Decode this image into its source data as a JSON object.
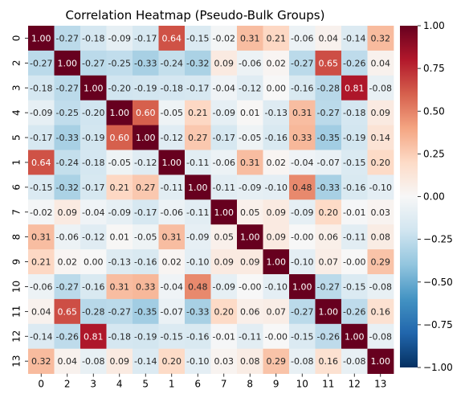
{
  "chart_data": {
    "type": "heatmap",
    "title": "Correlation Heatmap (Pseudo-Bulk Groups)",
    "xlabel": "",
    "ylabel": "",
    "x_labels": [
      "0",
      "2",
      "3",
      "4",
      "5",
      "1",
      "6",
      "7",
      "8",
      "9",
      "10",
      "11",
      "12",
      "13"
    ],
    "y_labels": [
      "0",
      "2",
      "3",
      "4",
      "5",
      "1",
      "6",
      "7",
      "8",
      "9",
      "10",
      "11",
      "12",
      "13"
    ],
    "values": [
      [
        1.0,
        -0.27,
        -0.18,
        -0.09,
        -0.17,
        0.64,
        -0.15,
        -0.02,
        0.31,
        0.21,
        -0.06,
        0.04,
        -0.14,
        0.32
      ],
      [
        -0.27,
        1.0,
        -0.27,
        -0.25,
        -0.33,
        -0.24,
        -0.32,
        0.09,
        -0.06,
        0.02,
        -0.27,
        0.65,
        -0.26,
        0.04
      ],
      [
        -0.18,
        -0.27,
        1.0,
        -0.2,
        -0.19,
        -0.18,
        -0.17,
        -0.04,
        -0.12,
        0.0,
        -0.16,
        -0.28,
        0.81,
        -0.08
      ],
      [
        -0.09,
        -0.25,
        -0.2,
        1.0,
        0.6,
        -0.05,
        0.21,
        -0.09,
        0.01,
        -0.13,
        0.31,
        -0.27,
        -0.18,
        0.09
      ],
      [
        -0.17,
        -0.33,
        -0.19,
        0.6,
        1.0,
        -0.12,
        0.27,
        -0.17,
        -0.05,
        -0.16,
        0.33,
        -0.35,
        -0.19,
        0.14
      ],
      [
        0.64,
        -0.24,
        -0.18,
        -0.05,
        -0.12,
        1.0,
        -0.11,
        -0.06,
        0.31,
        0.02,
        -0.04,
        -0.07,
        -0.15,
        0.2
      ],
      [
        -0.15,
        -0.32,
        -0.17,
        0.21,
        0.27,
        -0.11,
        1.0,
        -0.11,
        -0.09,
        -0.1,
        0.48,
        -0.33,
        -0.16,
        -0.1
      ],
      [
        -0.02,
        0.09,
        -0.04,
        -0.09,
        -0.17,
        -0.06,
        -0.11,
        1.0,
        0.05,
        0.09,
        -0.09,
        0.2,
        -0.01,
        0.03
      ],
      [
        0.31,
        -0.06,
        -0.12,
        0.01,
        -0.05,
        0.31,
        -0.09,
        0.05,
        1.0,
        0.09,
        -0.0,
        0.06,
        -0.11,
        0.08
      ],
      [
        0.21,
        0.02,
        0.0,
        -0.13,
        -0.16,
        0.02,
        -0.1,
        0.09,
        0.09,
        1.0,
        -0.1,
        0.07,
        -0.0,
        0.29
      ],
      [
        -0.06,
        -0.27,
        -0.16,
        0.31,
        0.33,
        -0.04,
        0.48,
        -0.09,
        -0.0,
        -0.1,
        1.0,
        -0.27,
        -0.15,
        -0.08
      ],
      [
        0.04,
        0.65,
        -0.28,
        -0.27,
        -0.35,
        -0.07,
        -0.33,
        0.2,
        0.06,
        0.07,
        -0.27,
        1.0,
        -0.26,
        0.16
      ],
      [
        -0.14,
        -0.26,
        0.81,
        -0.18,
        -0.19,
        -0.15,
        -0.16,
        -0.01,
        -0.11,
        -0.0,
        -0.15,
        -0.26,
        1.0,
        -0.08
      ],
      [
        0.32,
        0.04,
        -0.08,
        0.09,
        -0.14,
        0.2,
        -0.1,
        0.03,
        0.08,
        0.29,
        -0.08,
        0.16,
        -0.08,
        1.0
      ]
    ],
    "value_range": [
      -1.0,
      1.0
    ],
    "colormap": "RdBu_r",
    "annotations_format": "0.00",
    "colorbar": {
      "ticks": [
        1.0,
        0.75,
        0.5,
        0.25,
        0.0,
        -0.25,
        -0.5,
        -0.75,
        -1.0
      ],
      "tick_labels": [
        "1.00",
        "0.75",
        "0.50",
        "0.25",
        "0.00",
        "−0.25",
        "−0.50",
        "−0.75",
        "−1.00"
      ]
    },
    "grid": false,
    "legend": "colorbar-right"
  }
}
